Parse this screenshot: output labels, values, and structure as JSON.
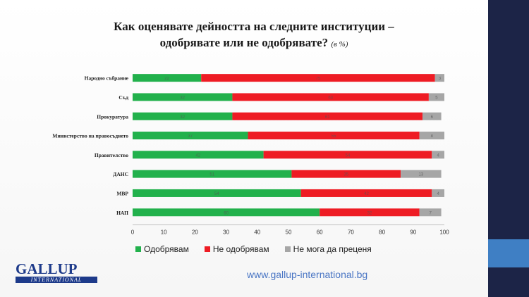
{
  "slide": {
    "title_line1": "Как оценявате дейността на следните институции –",
    "title_line2": "одобрявате или не одобрявате?",
    "title_note": "(в %)",
    "url": "www.gallup-international.bg",
    "logo_main": "GALLUP",
    "logo_sub": "INTERNATIONAL",
    "colors": {
      "sidebar": "#1c2447",
      "accent": "#3f7fc4"
    }
  },
  "chart_data": {
    "type": "bar",
    "orientation": "horizontal",
    "stacked": true,
    "categories": [
      "Народно събрание",
      "Съд",
      "Прокуратура",
      "Министерство на правосъдието",
      "Правителство",
      "ДАНС",
      "МВР",
      "НАП"
    ],
    "series": [
      {
        "name": "Одобрявам",
        "color": "#22b14c",
        "values": [
          22,
          32,
          32,
          37,
          42,
          51,
          54,
          60
        ]
      },
      {
        "name": "Не одобрявам",
        "color": "#ee1c24",
        "values": [
          75,
          63,
          61,
          55,
          54,
          35,
          42,
          32
        ]
      },
      {
        "name": "Не мога да преценя",
        "color": "#a6a6a6",
        "values": [
          3,
          5,
          6,
          8,
          4,
          13,
          4,
          7
        ]
      }
    ],
    "xlim": [
      0,
      100
    ],
    "xticks": [
      0,
      10,
      20,
      30,
      40,
      50,
      60,
      70,
      80,
      90,
      100
    ],
    "legend_position": "bottom",
    "grid": false
  }
}
